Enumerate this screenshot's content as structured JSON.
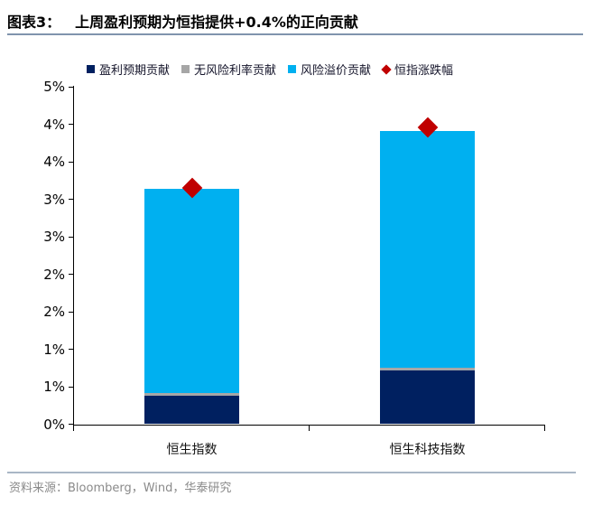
{
  "header": {
    "figure_label": "图表3：",
    "title": "上周盈利预期为恒指提供+0.4%的正向贡献"
  },
  "chart_data": {
    "type": "bar",
    "subtype": "stacked-bar-with-diamond-points",
    "title": "上周盈利预期为恒指提供+0.4%的正向贡献",
    "categories": [
      "恒生指数",
      "恒生科技指数"
    ],
    "series": [
      {
        "name": "盈利预期贡献",
        "color": "#002060",
        "values": [
          0.38,
          0.72
        ]
      },
      {
        "name": "无风险利率贡献",
        "color": "#a6a6a6",
        "values": [
          0.03,
          0.03
        ]
      },
      {
        "name": "风险溢价贡献",
        "color": "#00b0f0",
        "values": [
          2.73,
          3.16
        ]
      }
    ],
    "point_series": {
      "name": "恒指涨跌幅",
      "marker": "diamond",
      "color": "#c00000",
      "values": [
        3.15,
        3.96
      ]
    },
    "xlabel": "",
    "ylabel": "",
    "ylim": [
      0,
      4.5
    ],
    "ytick_step": 0.5,
    "ytick_labels_bottom_to_top": [
      "0%",
      "1%",
      "1%",
      "2%",
      "2%",
      "3%",
      "3%",
      "4%",
      "4%",
      "5%"
    ],
    "grid": false,
    "legend_position": "top"
  },
  "footer": {
    "source": "资料来源：Bloomberg，Wind，华泰研究"
  }
}
